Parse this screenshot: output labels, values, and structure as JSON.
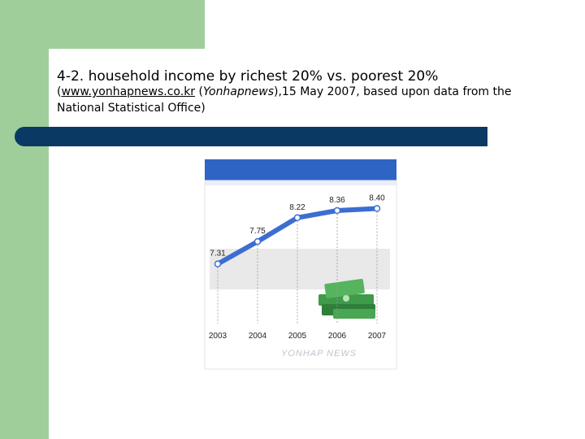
{
  "slide": {
    "title": "4-2. household income by richest 20% vs. poorest 20%",
    "subtitle_link": "www.yonhapnews.co.kr",
    "subtitle_source_name": "Yonhapnews",
    "subtitle_rest": ",15 May 2007, based upon data from the National Statistical Office)",
    "colors": {
      "side_band": "#9fce9b",
      "bar": "#0a3a64"
    }
  },
  "chart_data": {
    "type": "line",
    "title": "",
    "xlabel": "",
    "ylabel": "",
    "categories": [
      "2003",
      "2004",
      "2005",
      "2006",
      "2007"
    ],
    "series": [
      {
        "values": [
          7.31,
          7.75,
          8.22,
          8.36,
          8.4
        ],
        "labels": [
          "7.31",
          "7.75",
          "8.22",
          "8.36",
          "8.40"
        ]
      }
    ],
    "ylim": [
      7.0,
      8.6
    ],
    "watermark": "YONHAP NEWS",
    "colors": {
      "line": "#3c6ed2",
      "header": "#2e64c4",
      "band": "#e9e9e9"
    }
  }
}
